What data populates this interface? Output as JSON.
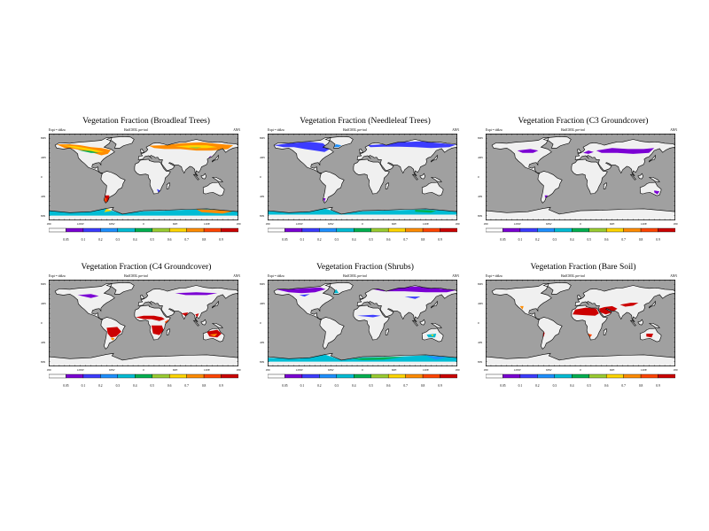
{
  "panels": [
    {
      "title": "Vegetation Fraction (Broadleaf Trees)",
      "expt": "Expt = tddzu",
      "source": "HadCM3L pre-ind",
      "period": "ANN",
      "type": "broadleaf"
    },
    {
      "title": "Vegetation Fraction (Needleleaf Trees)",
      "expt": "Expt = tddzu",
      "source": "HadCM3L pre-ind",
      "period": "ANN",
      "type": "needleleaf"
    },
    {
      "title": "Vegetation Fraction (C3 Groundcover)",
      "expt": "Expt = tddzu",
      "source": "HadCM3L pre-ind",
      "period": "ANN",
      "type": "c3"
    },
    {
      "title": "Vegetation Fraction (C4 Groundcover)",
      "expt": "Expt = tddzu",
      "source": "HadCM3L pre-ind",
      "period": "ANN",
      "type": "c4"
    },
    {
      "title": "Vegetation Fraction (Shrubs)",
      "expt": "Expt = tddzu",
      "source": "HadCM3L pre-ind",
      "period": "ANN",
      "type": "shrubs"
    },
    {
      "title": "Vegetation Fraction (Bare Soil)",
      "expt": "Expt = tddzu",
      "source": "HadCM3L pre-ind",
      "period": "ANN",
      "type": "bare"
    }
  ],
  "lon_labels": [
    "180",
    "120W",
    "60W",
    "0",
    "60E",
    "120E",
    "180"
  ],
  "lat_labels": [
    "80N",
    "40N",
    "0",
    "40S",
    "80S"
  ],
  "colorbar": {
    "labels": [
      "0.05",
      "0.1",
      "0.2",
      "0.3",
      "0.4",
      "0.5",
      "0.6",
      "0.7",
      "0.8",
      "0.9"
    ],
    "colors": [
      "#ffffff",
      "#7b00d4",
      "#3c3cff",
      "#1e90ff",
      "#00bcd4",
      "#00b050",
      "#9acd32",
      "#ffd700",
      "#ff8c00",
      "#ff4500",
      "#cc0000"
    ]
  },
  "colors": {
    "ocean": "#a0a0a0",
    "land_low": "#f0f0f0"
  }
}
